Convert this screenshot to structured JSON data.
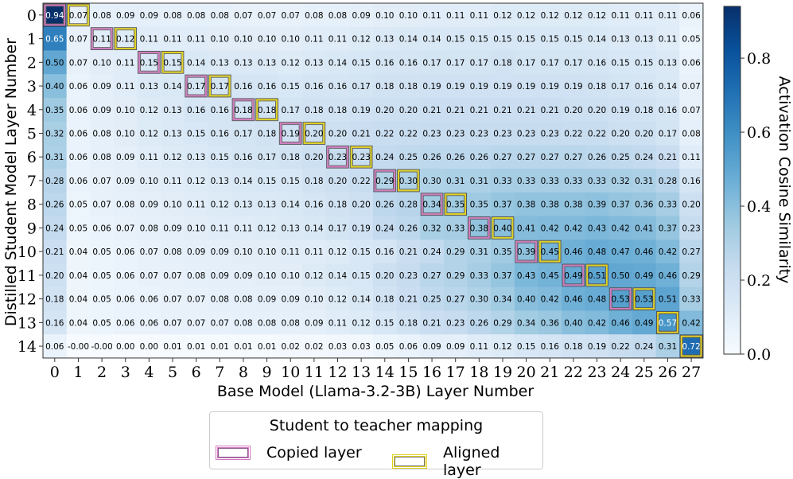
{
  "chart_data": {
    "type": "heatmap",
    "xlabel": "Base Model (Llama-3.2-3B) Layer Number",
    "ylabel": "Distilled Student Model Layer Number",
    "colorbar_label": "Activation Cosine Similarity",
    "colorbar_ticks": [
      "0.0",
      "0.2",
      "0.4",
      "0.6",
      "0.8"
    ],
    "colorbar_range": [
      0.0,
      0.94
    ],
    "colormap": "Blues",
    "x_ticks": [
      "0",
      "1",
      "2",
      "3",
      "4",
      "5",
      "6",
      "7",
      "8",
      "9",
      "10",
      "11",
      "12",
      "13",
      "14",
      "15",
      "16",
      "17",
      "18",
      "19",
      "20",
      "21",
      "22",
      "23",
      "24",
      "25",
      "26",
      "27"
    ],
    "y_ticks": [
      "0",
      "1",
      "2",
      "3",
      "4",
      "5",
      "6",
      "7",
      "8",
      "9",
      "10",
      "11",
      "12",
      "13",
      "14"
    ],
    "values": [
      [
        "0.94",
        "0.07",
        "0.08",
        "0.09",
        "0.09",
        "0.08",
        "0.08",
        "0.08",
        "0.07",
        "0.07",
        "0.07",
        "0.08",
        "0.08",
        "0.09",
        "0.10",
        "0.10",
        "0.11",
        "0.11",
        "0.11",
        "0.12",
        "0.12",
        "0.12",
        "0.12",
        "0.12",
        "0.11",
        "0.11",
        "0.11",
        "0.06"
      ],
      [
        "0.65",
        "0.07",
        "0.11",
        "0.12",
        "0.11",
        "0.11",
        "0.11",
        "0.10",
        "0.10",
        "0.10",
        "0.10",
        "0.11",
        "0.11",
        "0.12",
        "0.13",
        "0.14",
        "0.14",
        "0.15",
        "0.15",
        "0.15",
        "0.15",
        "0.15",
        "0.15",
        "0.14",
        "0.13",
        "0.13",
        "0.11",
        "0.05"
      ],
      [
        "0.50",
        "0.07",
        "0.10",
        "0.11",
        "0.15",
        "0.15",
        "0.14",
        "0.13",
        "0.13",
        "0.13",
        "0.12",
        "0.13",
        "0.14",
        "0.15",
        "0.16",
        "0.16",
        "0.17",
        "0.17",
        "0.17",
        "0.18",
        "0.17",
        "0.17",
        "0.17",
        "0.16",
        "0.15",
        "0.15",
        "0.13",
        "0.06"
      ],
      [
        "0.40",
        "0.06",
        "0.09",
        "0.11",
        "0.13",
        "0.14",
        "0.17",
        "0.17",
        "0.16",
        "0.16",
        "0.15",
        "0.16",
        "0.16",
        "0.17",
        "0.18",
        "0.18",
        "0.19",
        "0.19",
        "0.19",
        "0.19",
        "0.19",
        "0.19",
        "0.19",
        "0.18",
        "0.17",
        "0.16",
        "0.14",
        "0.07"
      ],
      [
        "0.35",
        "0.06",
        "0.09",
        "0.10",
        "0.12",
        "0.13",
        "0.16",
        "0.16",
        "0.18",
        "0.18",
        "0.17",
        "0.18",
        "0.18",
        "0.19",
        "0.20",
        "0.20",
        "0.21",
        "0.21",
        "0.21",
        "0.21",
        "0.21",
        "0.21",
        "0.20",
        "0.20",
        "0.19",
        "0.18",
        "0.16",
        "0.07"
      ],
      [
        "0.32",
        "0.06",
        "0.08",
        "0.10",
        "0.12",
        "0.13",
        "0.15",
        "0.16",
        "0.17",
        "0.18",
        "0.19",
        "0.20",
        "0.20",
        "0.21",
        "0.22",
        "0.22",
        "0.23",
        "0.23",
        "0.23",
        "0.23",
        "0.23",
        "0.23",
        "0.22",
        "0.22",
        "0.20",
        "0.20",
        "0.17",
        "0.08"
      ],
      [
        "0.31",
        "0.06",
        "0.08",
        "0.09",
        "0.11",
        "0.12",
        "0.13",
        "0.15",
        "0.16",
        "0.17",
        "0.18",
        "0.20",
        "0.23",
        "0.23",
        "0.24",
        "0.25",
        "0.26",
        "0.26",
        "0.26",
        "0.27",
        "0.27",
        "0.27",
        "0.27",
        "0.26",
        "0.25",
        "0.24",
        "0.21",
        "0.11"
      ],
      [
        "0.28",
        "0.06",
        "0.07",
        "0.09",
        "0.10",
        "0.11",
        "0.12",
        "0.13",
        "0.14",
        "0.15",
        "0.15",
        "0.18",
        "0.20",
        "0.22",
        "0.29",
        "0.30",
        "0.30",
        "0.31",
        "0.31",
        "0.33",
        "0.33",
        "0.33",
        "0.33",
        "0.33",
        "0.32",
        "0.31",
        "0.28",
        "0.16"
      ],
      [
        "0.26",
        "0.05",
        "0.07",
        "0.08",
        "0.09",
        "0.10",
        "0.11",
        "0.12",
        "0.13",
        "0.13",
        "0.14",
        "0.16",
        "0.18",
        "0.20",
        "0.26",
        "0.28",
        "0.34",
        "0.35",
        "0.35",
        "0.37",
        "0.38",
        "0.38",
        "0.38",
        "0.39",
        "0.37",
        "0.36",
        "0.33",
        "0.20"
      ],
      [
        "0.24",
        "0.05",
        "0.06",
        "0.07",
        "0.08",
        "0.09",
        "0.10",
        "0.11",
        "0.11",
        "0.12",
        "0.13",
        "0.14",
        "0.17",
        "0.19",
        "0.24",
        "0.26",
        "0.32",
        "0.33",
        "0.38",
        "0.40",
        "0.41",
        "0.42",
        "0.42",
        "0.43",
        "0.42",
        "0.41",
        "0.37",
        "0.23"
      ],
      [
        "0.21",
        "0.04",
        "0.05",
        "0.06",
        "0.07",
        "0.08",
        "0.09",
        "0.09",
        "0.10",
        "0.10",
        "0.11",
        "0.11",
        "0.12",
        "0.15",
        "0.16",
        "0.21",
        "0.24",
        "0.29",
        "0.31",
        "0.35",
        "0.39",
        "0.45",
        "0.46",
        "0.48",
        "0.47",
        "0.46",
        "0.42",
        "0.27"
      ],
      [
        "0.20",
        "0.04",
        "0.05",
        "0.06",
        "0.07",
        "0.07",
        "0.08",
        "0.09",
        "0.09",
        "0.10",
        "0.10",
        "0.12",
        "0.14",
        "0.15",
        "0.20",
        "0.23",
        "0.27",
        "0.29",
        "0.33",
        "0.37",
        "0.43",
        "0.45",
        "0.49",
        "0.51",
        "0.50",
        "0.49",
        "0.46",
        "0.29"
      ],
      [
        "0.18",
        "0.04",
        "0.05",
        "0.06",
        "0.06",
        "0.07",
        "0.07",
        "0.08",
        "0.08",
        "0.09",
        "0.09",
        "0.10",
        "0.12",
        "0.14",
        "0.18",
        "0.21",
        "0.25",
        "0.27",
        "0.30",
        "0.34",
        "0.40",
        "0.42",
        "0.46",
        "0.48",
        "0.53",
        "0.53",
        "0.51",
        "0.33"
      ],
      [
        "0.16",
        "0.04",
        "0.05",
        "0.06",
        "0.06",
        "0.07",
        "0.07",
        "0.07",
        "0.08",
        "0.08",
        "0.08",
        "0.09",
        "0.11",
        "0.12",
        "0.15",
        "0.18",
        "0.21",
        "0.23",
        "0.26",
        "0.29",
        "0.34",
        "0.36",
        "0.40",
        "0.42",
        "0.46",
        "0.49",
        "0.57",
        "0.42"
      ],
      [
        "0.06",
        "-0.00",
        "-0.00",
        "0.00",
        "0.00",
        "0.01",
        "0.01",
        "0.01",
        "0.01",
        "0.01",
        "0.02",
        "0.02",
        "0.03",
        "0.03",
        "0.05",
        "0.06",
        "0.09",
        "0.09",
        "0.11",
        "0.12",
        "0.15",
        "0.16",
        "0.18",
        "0.19",
        "0.22",
        "0.24",
        "0.31",
        "0.72"
      ]
    ],
    "copied_cells": [
      [
        0,
        0
      ],
      [
        1,
        2
      ],
      [
        2,
        4
      ],
      [
        3,
        6
      ],
      [
        4,
        8
      ],
      [
        5,
        10
      ],
      [
        6,
        12
      ],
      [
        7,
        14
      ],
      [
        8,
        16
      ],
      [
        9,
        18
      ],
      [
        10,
        20
      ],
      [
        11,
        22
      ],
      [
        12,
        24
      ],
      [
        13,
        26
      ],
      [
        14,
        27
      ]
    ],
    "aligned_cells": [
      [
        0,
        1
      ],
      [
        1,
        3
      ],
      [
        2,
        5
      ],
      [
        3,
        7
      ],
      [
        4,
        9
      ],
      [
        5,
        11
      ],
      [
        6,
        13
      ],
      [
        7,
        15
      ],
      [
        8,
        17
      ],
      [
        9,
        19
      ],
      [
        10,
        21
      ],
      [
        11,
        23
      ],
      [
        12,
        25
      ],
      [
        13,
        26
      ],
      [
        14,
        27
      ]
    ],
    "colors": {
      "copied": "#d17bbe",
      "aligned": "#e0d020"
    },
    "legend": {
      "title": "Student to teacher mapping",
      "items": [
        {
          "label": "Copied layer",
          "key": "copied"
        },
        {
          "label": "Aligned layer",
          "key": "aligned"
        }
      ]
    }
  }
}
